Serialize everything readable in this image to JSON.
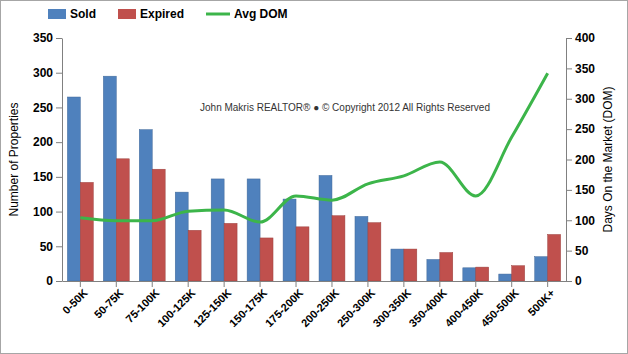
{
  "chart_data": {
    "type": "bar",
    "categories": [
      "0-50K",
      "50-75K",
      "75-100K",
      "100-125K",
      "125-150K",
      "150-175K",
      "175-200K",
      "200-250K",
      "250-300K",
      "300-350K",
      "350-400K",
      "400-450K",
      "450-500K",
      "500K+"
    ],
    "series": [
      {
        "name": "Sold",
        "color": "#4f81bd",
        "type": "bar",
        "values": [
          265,
          295,
          218,
          128,
          147,
          147,
          118,
          152,
          93,
          46,
          31,
          19,
          10,
          35
        ]
      },
      {
        "name": "Expired",
        "color": "#c0504d",
        "type": "bar",
        "values": [
          142,
          176,
          161,
          73,
          83,
          62,
          78,
          94,
          84,
          46,
          41,
          20,
          22,
          67
        ]
      },
      {
        "name": "Avg DOM",
        "color": "#3cb54a",
        "type": "line",
        "axis": "y2",
        "values": [
          104,
          99,
          99,
          115,
          117,
          97,
          140,
          133,
          160,
          173,
          196,
          140,
          237,
          342
        ]
      }
    ],
    "y_label": "Number  of  Properties",
    "y2_label": "Days On the Market (DOM)",
    "annotations": [
      "John Makris REALTOR®  ●  © Copyright 2012 All Rights Reserved"
    ],
    "ylim": [
      0,
      350
    ],
    "yticks": [
      0,
      50,
      100,
      150,
      200,
      250,
      300,
      350
    ],
    "y2lim": [
      0,
      400
    ],
    "y2ticks": [
      0,
      50,
      100,
      150,
      200,
      250,
      300,
      350,
      400
    ],
    "grid": false,
    "legend": "top"
  }
}
